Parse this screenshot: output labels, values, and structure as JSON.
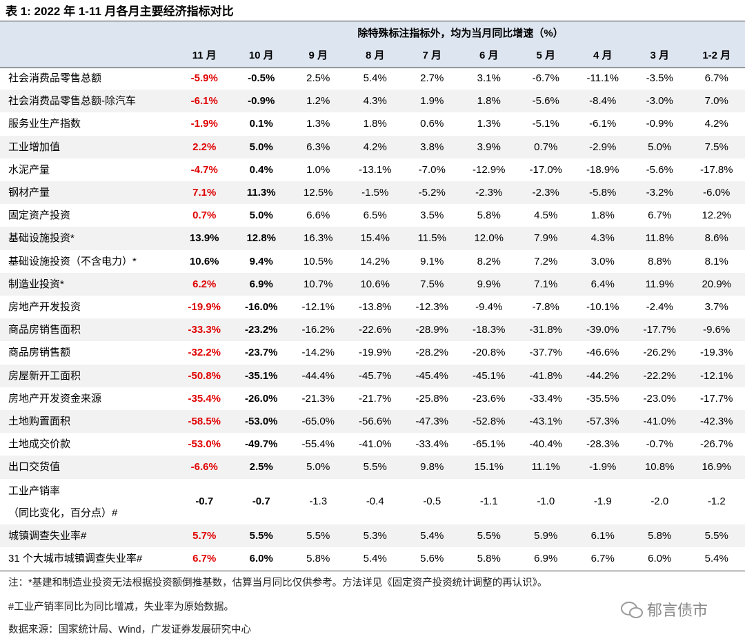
{
  "header": {
    "title": "表 1:  2022 年 1-11 月各月主要经济指标对比"
  },
  "table": {
    "unit_note": "除特殊标注指标外，均为当月同比增速（%）",
    "columns": [
      "11 月",
      "10 月",
      "9 月",
      "8 月",
      "7 月",
      "6 月",
      "5 月",
      "4 月",
      "3 月",
      "1-2 月"
    ],
    "rows": [
      {
        "label": "社会消费品零售总额",
        "cells": [
          "-5.9%",
          "-0.5%",
          "2.5%",
          "5.4%",
          "2.7%",
          "3.1%",
          "-6.7%",
          "-11.1%",
          "-3.5%",
          "6.7%"
        ]
      },
      {
        "label": "社会消费品零售总额-除汽车",
        "cells": [
          "-6.1%",
          "-0.9%",
          "1.2%",
          "4.3%",
          "1.9%",
          "1.8%",
          "-5.6%",
          "-8.4%",
          "-3.0%",
          "7.0%"
        ]
      },
      {
        "label": "服务业生产指数",
        "cells": [
          "-1.9%",
          "0.1%",
          "1.3%",
          "1.8%",
          "0.6%",
          "1.3%",
          "-5.1%",
          "-6.1%",
          "-0.9%",
          "4.2%"
        ]
      },
      {
        "label": "工业增加值",
        "cells": [
          "2.2%",
          "5.0%",
          "6.3%",
          "4.2%",
          "3.8%",
          "3.9%",
          "0.7%",
          "-2.9%",
          "5.0%",
          "7.5%"
        ]
      },
      {
        "label": "水泥产量",
        "cells": [
          "-4.7%",
          "0.4%",
          "1.0%",
          "-13.1%",
          "-7.0%",
          "-12.9%",
          "-17.0%",
          "-18.9%",
          "-5.6%",
          "-17.8%"
        ]
      },
      {
        "label": "钢材产量",
        "cells": [
          "7.1%",
          "11.3%",
          "12.5%",
          "-1.5%",
          "-5.2%",
          "-2.3%",
          "-2.3%",
          "-5.8%",
          "-3.2%",
          "-6.0%"
        ]
      },
      {
        "label": "固定资产投资",
        "cells": [
          "0.7%",
          "5.0%",
          "6.6%",
          "6.5%",
          "3.5%",
          "5.8%",
          "4.5%",
          "1.8%",
          "6.7%",
          "12.2%"
        ]
      },
      {
        "label": "基础设施投资*",
        "cells": [
          "13.9%",
          "12.8%",
          "16.3%",
          "15.4%",
          "11.5%",
          "12.0%",
          "7.9%",
          "4.3%",
          "11.8%",
          "8.6%"
        ]
      },
      {
        "label": "基础设施投资（不含电力）*",
        "cells": [
          "10.6%",
          "9.4%",
          "10.5%",
          "14.2%",
          "9.1%",
          "8.2%",
          "7.2%",
          "3.0%",
          "8.8%",
          "8.1%"
        ]
      },
      {
        "label": "制造业投资*",
        "cells": [
          "6.2%",
          "6.9%",
          "10.7%",
          "10.6%",
          "7.5%",
          "9.9%",
          "7.1%",
          "6.4%",
          "11.9%",
          "20.9%"
        ]
      },
      {
        "label": "房地产开发投资",
        "cells": [
          "-19.9%",
          "-16.0%",
          "-12.1%",
          "-13.8%",
          "-12.3%",
          "-9.4%",
          "-7.8%",
          "-10.1%",
          "-2.4%",
          "3.7%"
        ]
      },
      {
        "label": "商品房销售面积",
        "cells": [
          "-33.3%",
          "-23.2%",
          "-16.2%",
          "-22.6%",
          "-28.9%",
          "-18.3%",
          "-31.8%",
          "-39.0%",
          "-17.7%",
          "-9.6%"
        ]
      },
      {
        "label": "商品房销售额",
        "cells": [
          "-32.2%",
          "-23.7%",
          "-14.2%",
          "-19.9%",
          "-28.2%",
          "-20.8%",
          "-37.7%",
          "-46.6%",
          "-26.2%",
          "-19.3%"
        ]
      },
      {
        "label": "房屋新开工面积",
        "cells": [
          "-50.8%",
          "-35.1%",
          "-44.4%",
          "-45.7%",
          "-45.4%",
          "-45.1%",
          "-41.8%",
          "-44.2%",
          "-22.2%",
          "-12.1%"
        ]
      },
      {
        "label": "房地产开发资金来源",
        "cells": [
          "-35.4%",
          "-26.0%",
          "-21.3%",
          "-21.7%",
          "-25.8%",
          "-23.6%",
          "-33.4%",
          "-35.5%",
          "-23.0%",
          "-17.7%"
        ]
      },
      {
        "label": "土地购置面积",
        "cells": [
          "-58.5%",
          "-53.0%",
          "-65.0%",
          "-56.6%",
          "-47.3%",
          "-52.8%",
          "-43.1%",
          "-57.3%",
          "-41.0%",
          "-42.3%"
        ]
      },
      {
        "label": "土地成交价款",
        "cells": [
          "-53.0%",
          "-49.7%",
          "-55.4%",
          "-41.0%",
          "-33.4%",
          "-65.1%",
          "-40.4%",
          "-28.3%",
          "-0.7%",
          "-26.7%"
        ]
      },
      {
        "label": "出口交货值",
        "cells": [
          "-6.6%",
          "2.5%",
          "5.0%",
          "5.5%",
          "9.8%",
          "15.1%",
          "11.1%",
          "-1.9%",
          "10.8%",
          "16.9%"
        ]
      },
      {
        "label": "工业产销率",
        "sublabel": "（同比变化，百分点）#",
        "cells": [
          "-0.7",
          "-0.7",
          "-1.3",
          "-0.4",
          "-0.5",
          "-1.1",
          "-1.0",
          "-1.9",
          "-2.0",
          "-1.2"
        ]
      },
      {
        "label": "城镇调查失业率#",
        "cells": [
          "5.7%",
          "5.5%",
          "5.5%",
          "5.3%",
          "5.4%",
          "5.5%",
          "5.9%",
          "6.1%",
          "5.8%",
          "5.5%"
        ]
      },
      {
        "label": "31 个大城市城镇调查失业率#",
        "cells": [
          "6.7%",
          "6.0%",
          "5.8%",
          "5.4%",
          "5.6%",
          "5.8%",
          "6.9%",
          "6.7%",
          "6.0%",
          "5.4%"
        ]
      }
    ]
  },
  "notes": [
    "注：*基建和制造业投资无法根据投资额倒推基数，估算当月同比仅供参考。方法详见《固定资产投资统计调整的再认识》。",
    "#工业产销率同比为同比增减，失业率为原始数据。",
    "数据来源：国家统计局、Wind，广发证券发展研究中心"
  ],
  "watermark": "郁言债市"
}
